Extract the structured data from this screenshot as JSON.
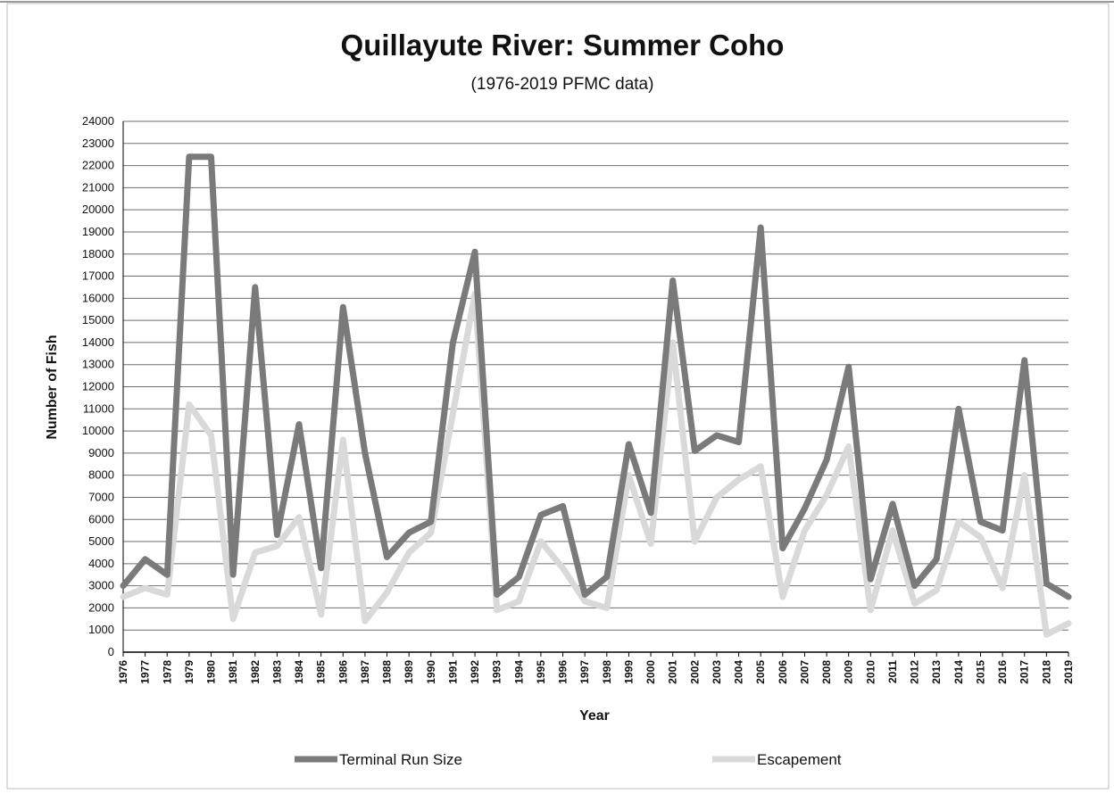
{
  "chart_data": {
    "type": "line",
    "title": "Quillayute River: Summer Coho",
    "subtitle": "(1976-2019 PFMC data)",
    "xlabel": "Year",
    "ylabel": "Number of Fish",
    "ylim": [
      0,
      24000
    ],
    "ytick_step": 1000,
    "grid": true,
    "legend_position": "bottom",
    "x": [
      "1976",
      "1977",
      "1978",
      "1979",
      "1980",
      "1981",
      "1982",
      "1983",
      "1984",
      "1985",
      "1986",
      "1987",
      "1988",
      "1989",
      "1990",
      "1991",
      "1992",
      "1993",
      "1994",
      "1995",
      "1996",
      "1997",
      "1998",
      "1999",
      "2000",
      "2001",
      "2002",
      "2003",
      "2004",
      "2005",
      "2006",
      "2007",
      "2008",
      "2009",
      "2010",
      "2011",
      "2012",
      "2013",
      "2014",
      "2015",
      "2016",
      "2017",
      "2018",
      "2019"
    ],
    "series": [
      {
        "name": "Terminal Run Size",
        "color": "#7a7a7a",
        "values": [
          3000,
          4200,
          3500,
          22400,
          22400,
          3500,
          16500,
          5300,
          10300,
          3800,
          15600,
          9000,
          4300,
          5400,
          5900,
          14000,
          18100,
          2600,
          3400,
          6200,
          6600,
          2600,
          3400,
          9400,
          6300,
          16800,
          9100,
          9800,
          9500,
          19200,
          4700,
          6500,
          8700,
          12900,
          3300,
          6700,
          3000,
          4200,
          11000,
          5900,
          5500,
          13200,
          3100,
          2500
        ]
      },
      {
        "name": "Escapement",
        "color": "#d9d9d9",
        "values": [
          2500,
          2900,
          2600,
          11200,
          9800,
          1500,
          4500,
          4800,
          6100,
          1700,
          9600,
          1400,
          2700,
          4500,
          5400,
          10800,
          16200,
          1900,
          2300,
          5000,
          3800,
          2300,
          2000,
          8000,
          4900,
          14000,
          5000,
          7000,
          7800,
          8400,
          2500,
          5500,
          7100,
          9300,
          1900,
          5500,
          2200,
          2800,
          5900,
          5200,
          2900,
          8000,
          800,
          1300
        ]
      }
    ]
  }
}
